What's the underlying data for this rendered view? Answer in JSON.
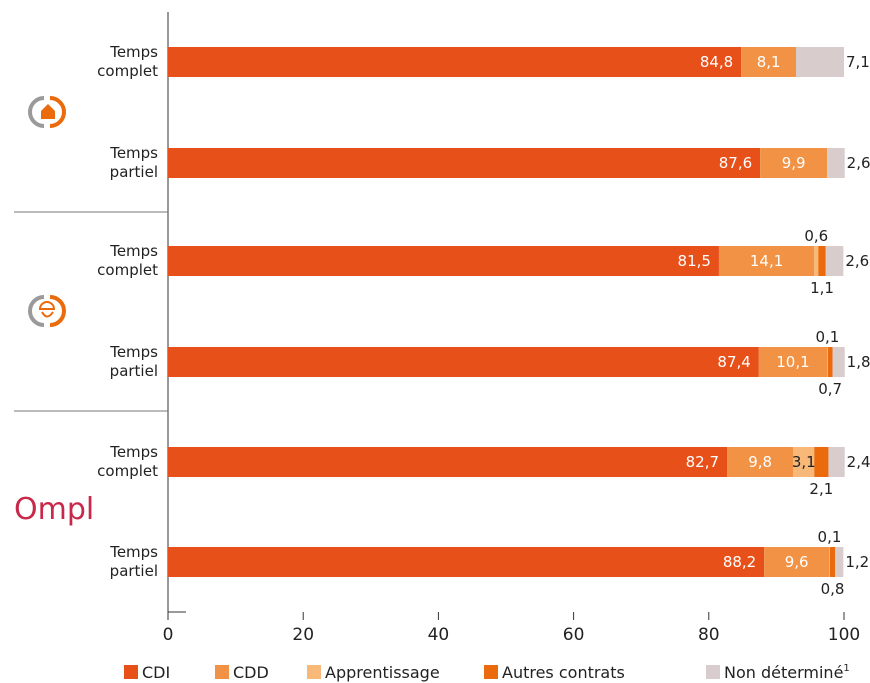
{
  "chart_data": {
    "type": "bar",
    "orientation": "horizontal",
    "stacked": true,
    "xlim": [
      0,
      100
    ],
    "xticks": [
      "0",
      "20",
      "40",
      "60",
      "80",
      "100"
    ],
    "groups": [
      {
        "icon": "house-icon",
        "rows": [
          {
            "label_lines": [
              "Temps",
              "complet"
            ],
            "values": [
              84.8,
              8.1,
              0,
              0,
              7.1
            ],
            "labels": [
              "84,8",
              "8,1",
              "",
              "",
              "7,1"
            ]
          },
          {
            "label_lines": [
              "Temps",
              "partiel"
            ],
            "values": [
              87.6,
              9.9,
              0,
              0,
              2.6
            ],
            "labels": [
              "87,6",
              "9,9",
              "",
              "",
              "2,6"
            ]
          }
        ]
      },
      {
        "icon": "worker-icon",
        "rows": [
          {
            "label_lines": [
              "Temps",
              "complet"
            ],
            "values": [
              81.5,
              14.1,
              0.6,
              1.1,
              2.6
            ],
            "labels": [
              "81,5",
              "14,1",
              "0,6",
              "1,1",
              "2,6"
            ]
          },
          {
            "label_lines": [
              "Temps",
              "partiel"
            ],
            "values": [
              87.4,
              10.1,
              0.1,
              0.7,
              1.8
            ],
            "labels": [
              "87,4",
              "10,1",
              "0,1",
              "0,7",
              "1,8"
            ]
          }
        ]
      },
      {
        "logo_text": "Ompl",
        "rows": [
          {
            "label_lines": [
              "Temps",
              "complet"
            ],
            "values": [
              82.7,
              9.8,
              3.1,
              2.1,
              2.4
            ],
            "labels": [
              "82,7",
              "9,8",
              "3,1",
              "2,1",
              "2,4"
            ]
          },
          {
            "label_lines": [
              "Temps",
              "partiel"
            ],
            "values": [
              88.2,
              9.6,
              0.1,
              0.8,
              1.2
            ],
            "labels": [
              "88,2",
              "9,6",
              "0,1",
              "0,8",
              "1,2"
            ]
          }
        ]
      }
    ],
    "series": [
      {
        "name": "CDI",
        "color": "#e8501a"
      },
      {
        "name": "CDD",
        "color": "#f19244"
      },
      {
        "name": "Apprentissage",
        "color": "#f8b878"
      },
      {
        "name": "Autres contrats",
        "color": "#ea6a0c"
      },
      {
        "name": "Non déterminé",
        "color": "#d8cccc",
        "note": "1"
      }
    ],
    "legend": "bottom"
  }
}
